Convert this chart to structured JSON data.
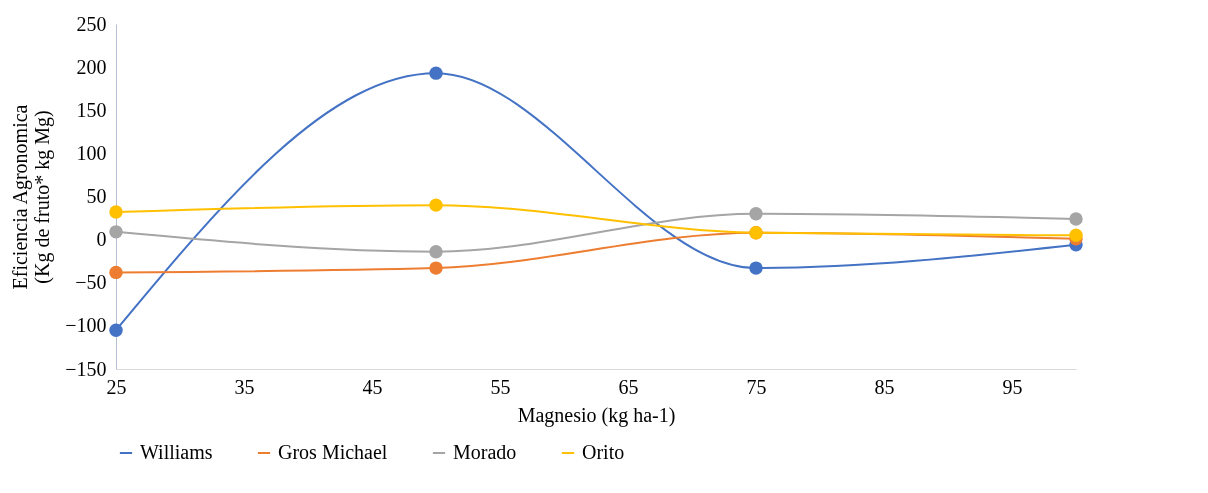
{
  "chart_data": {
    "type": "line",
    "xlabel": "Magnesio  (kg ha-1)",
    "ylabel": "Eficiencia Agronomica\n(Kg de fruto* kg Mg)",
    "x": [
      25,
      50,
      75,
      100
    ],
    "series": [
      {
        "name": "Williams",
        "color": "#4472c4",
        "values": [
          -105,
          193,
          -33,
          -6
        ]
      },
      {
        "name": "Gros Michael",
        "color": "#ed7d31",
        "values": [
          -38,
          -33,
          8,
          1
        ]
      },
      {
        "name": "Morado",
        "color": "#a5a5a5",
        "values": [
          9,
          -14,
          30,
          24
        ]
      },
      {
        "name": "Orito",
        "color": "#ffc000",
        "values": [
          32,
          40,
          8,
          5
        ]
      }
    ],
    "xlim": [
      25,
      100
    ],
    "xticks": [
      25,
      35,
      45,
      55,
      65,
      75,
      85,
      95
    ],
    "ylim": [
      -150,
      250
    ],
    "yticks": [
      -150,
      -100,
      -50,
      0,
      50,
      100,
      150,
      200,
      250
    ],
    "marker": "circle",
    "legend": "bottom",
    "grid": false
  }
}
